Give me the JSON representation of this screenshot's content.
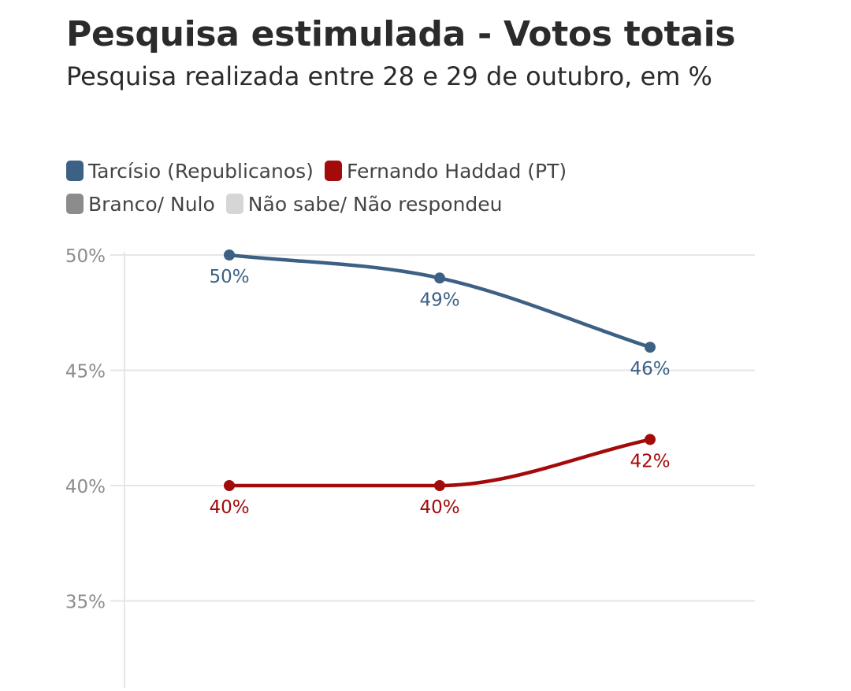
{
  "header": {
    "title": "Pesquisa estimulada - Votos totais",
    "subtitle": "Pesquisa realizada entre 28 e 29 de outubro, em %"
  },
  "legend": [
    {
      "name": "Tarcísio (Republicanos)",
      "color": "#3c6184"
    },
    {
      "name": "Fernando Haddad (PT)",
      "color": "#a30a0a"
    },
    {
      "name": "Branco/ Nulo",
      "color": "#8c8c8c"
    },
    {
      "name": "Não sabe/ Não respondeu",
      "color": "#d6d6d6"
    }
  ],
  "chart_data": {
    "type": "line",
    "title": "Pesquisa estimulada - Votos totais",
    "subtitle": "Pesquisa realizada entre 28 e 29 de outubro, em %",
    "ylim": [
      34,
      50
    ],
    "yticks": [
      50,
      45,
      40,
      35
    ],
    "ytick_labels": [
      "50%",
      "45%",
      "40%",
      "35%"
    ],
    "grid": true,
    "legend_position": "top",
    "x": [
      1,
      2,
      3
    ],
    "series": [
      {
        "name": "Tarcísio (Republicanos)",
        "color": "#3c6184",
        "values": [
          50,
          49,
          46
        ],
        "labels": [
          "50%",
          "49%",
          "46%"
        ]
      },
      {
        "name": "Fernando Haddad (PT)",
        "color": "#a30a0a",
        "values": [
          40,
          40,
          42
        ],
        "labels": [
          "40%",
          "40%",
          "42%"
        ]
      }
    ]
  }
}
